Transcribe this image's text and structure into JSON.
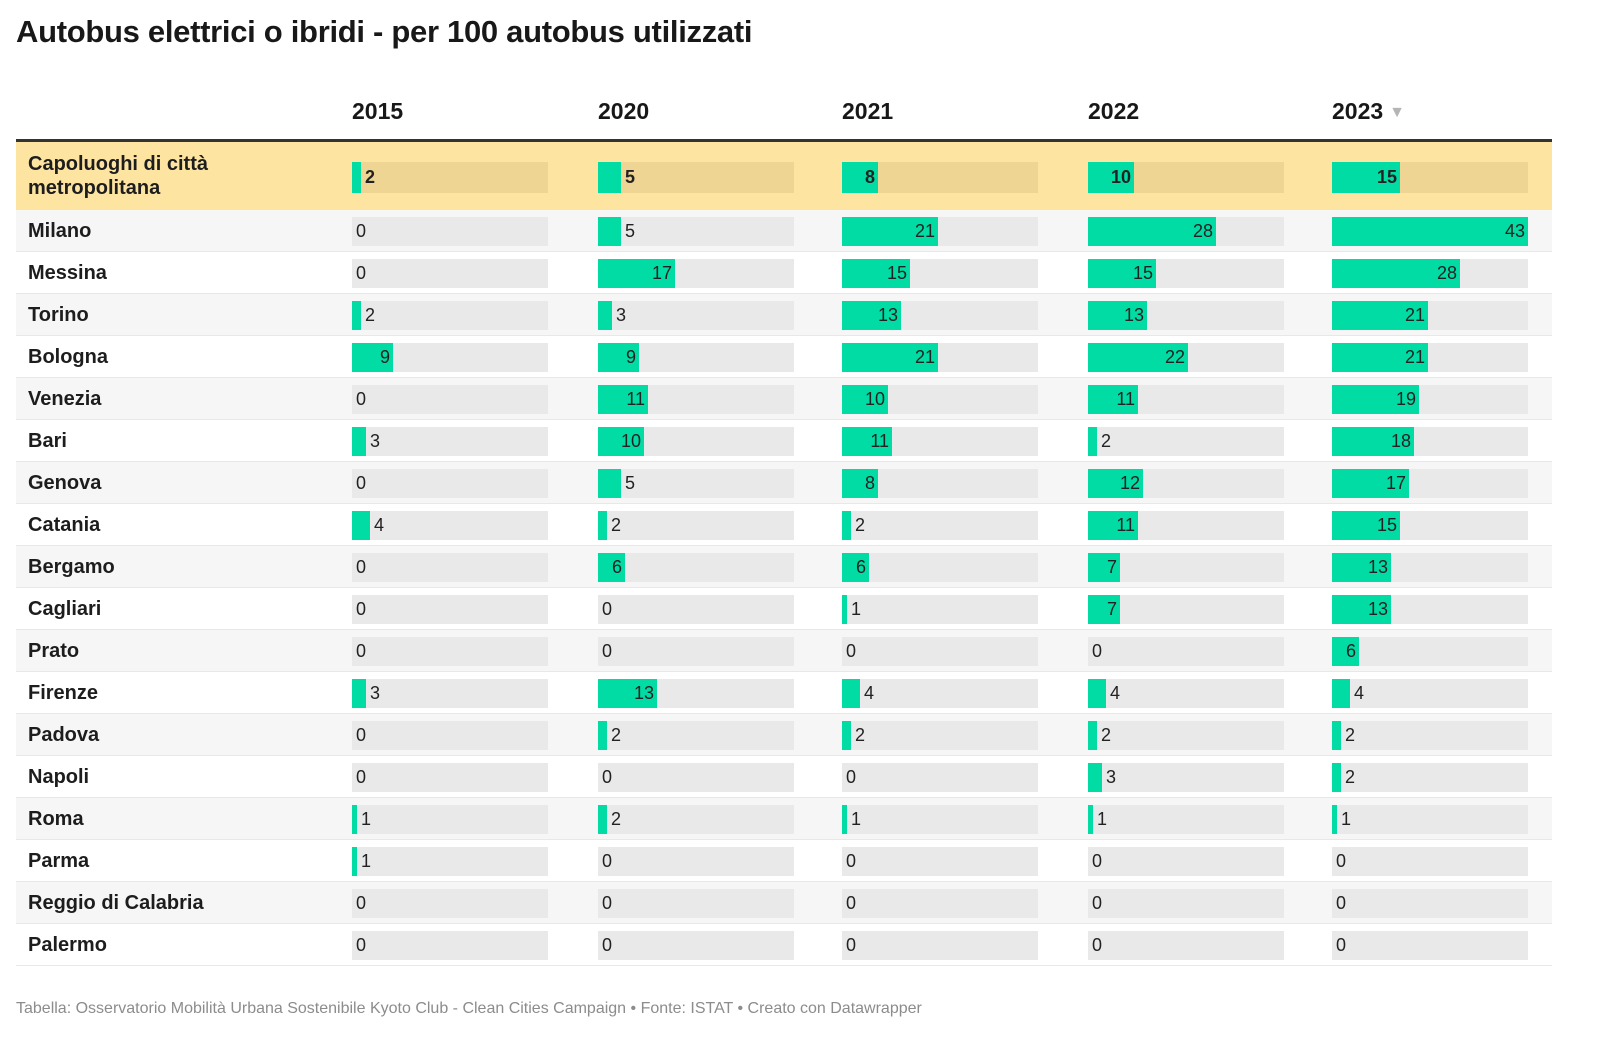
{
  "title": "Autobus elettrici o ibridi - per 100 autobus utilizzati",
  "footer": "Tabella: Osservatorio Mobilità Urbana Sostenibile Kyoto Club - Clean Cities Campaign • Fonte: ISTAT • Creato con Datawrapper",
  "sort_icon": "sort-descending-icon",
  "colors": {
    "bar": "#00dca4",
    "track": "#e9e9e9",
    "highlight_row": "#fde4a1",
    "highlight_track": "#efd593"
  },
  "chart_data": {
    "type": "table",
    "columns": [
      "2015",
      "2020",
      "2021",
      "2022",
      "2023"
    ],
    "sorted_by": "2023",
    "bar_max": 43,
    "rows": [
      {
        "name": "Capoluoghi di città metropolitana",
        "values": [
          2,
          5,
          8,
          10,
          15
        ],
        "highlight": true
      },
      {
        "name": "Milano",
        "values": [
          0,
          5,
          21,
          28,
          43
        ]
      },
      {
        "name": "Messina",
        "values": [
          0,
          17,
          15,
          15,
          28
        ]
      },
      {
        "name": "Torino",
        "values": [
          2,
          3,
          13,
          13,
          21
        ]
      },
      {
        "name": "Bologna",
        "values": [
          9,
          9,
          21,
          22,
          21
        ]
      },
      {
        "name": "Venezia",
        "values": [
          0,
          11,
          10,
          11,
          19
        ]
      },
      {
        "name": "Bari",
        "values": [
          3,
          10,
          11,
          2,
          18
        ]
      },
      {
        "name": "Genova",
        "values": [
          0,
          5,
          8,
          12,
          17
        ]
      },
      {
        "name": "Catania",
        "values": [
          4,
          2,
          2,
          11,
          15
        ]
      },
      {
        "name": "Bergamo",
        "values": [
          0,
          6,
          6,
          7,
          13
        ]
      },
      {
        "name": "Cagliari",
        "values": [
          0,
          0,
          1,
          7,
          13
        ]
      },
      {
        "name": "Prato",
        "values": [
          0,
          0,
          0,
          0,
          6
        ]
      },
      {
        "name": "Firenze",
        "values": [
          3,
          13,
          4,
          4,
          4
        ]
      },
      {
        "name": "Padova",
        "values": [
          0,
          2,
          2,
          2,
          2
        ]
      },
      {
        "name": "Napoli",
        "values": [
          0,
          0,
          0,
          3,
          2
        ]
      },
      {
        "name": "Roma",
        "values": [
          1,
          2,
          1,
          1,
          1
        ]
      },
      {
        "name": "Parma",
        "values": [
          1,
          0,
          0,
          0,
          0
        ]
      },
      {
        "name": "Reggio di Calabria",
        "values": [
          0,
          0,
          0,
          0,
          0
        ]
      },
      {
        "name": "Palermo",
        "values": [
          0,
          0,
          0,
          0,
          0
        ]
      }
    ]
  }
}
